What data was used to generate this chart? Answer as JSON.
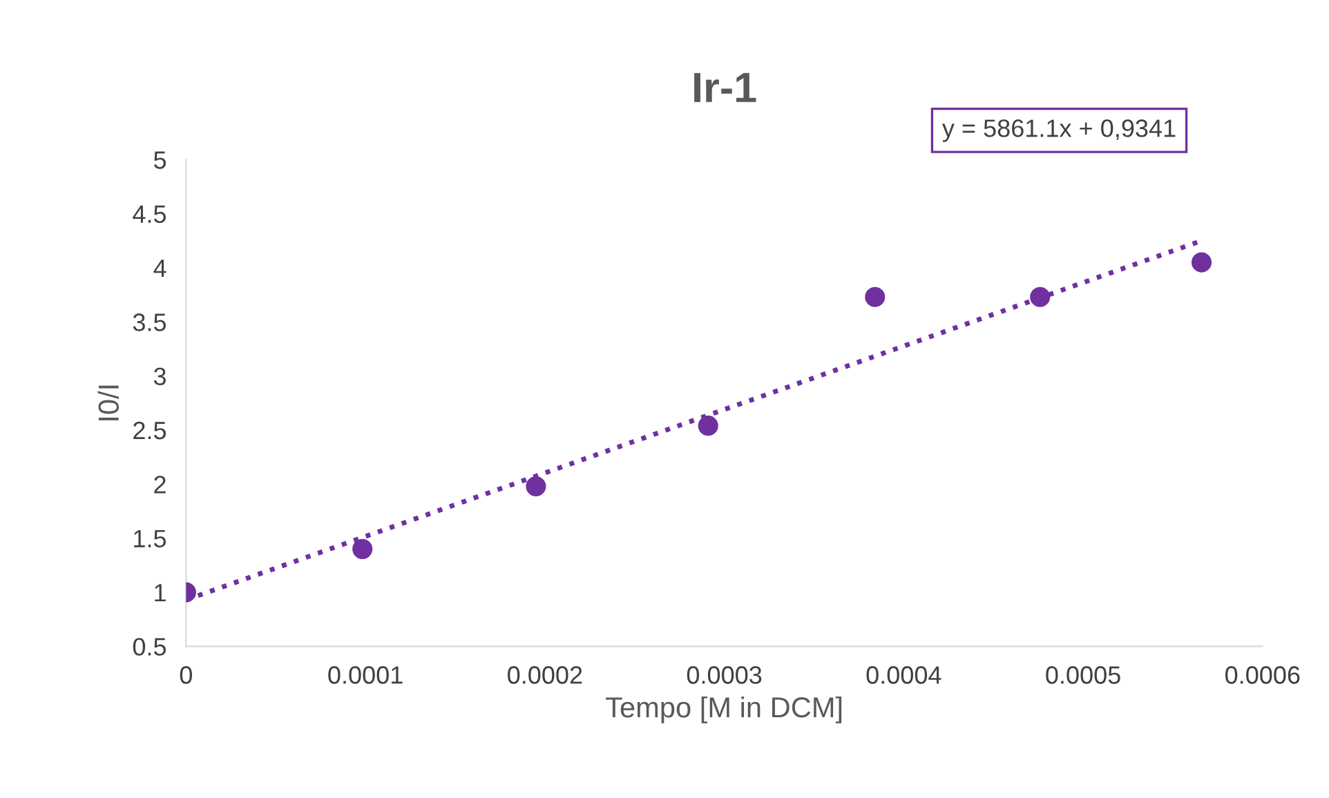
{
  "chart_data": {
    "type": "scatter",
    "title": "Ir-1",
    "xlabel": "Tempo [M in DCM]",
    "ylabel": "I0/I",
    "series": [
      {
        "color": "#7030a0",
        "marker": "circle",
        "x": [
          0,
          9.83e-05,
          0.000195,
          0.000291,
          0.000384,
          0.000476,
          0.000566
        ],
        "values": [
          1.0,
          1.4,
          1.98,
          2.54,
          3.73,
          3.73,
          4.05
        ]
      },
      {
        "type": "line",
        "color": "#7030a0",
        "line_style": "dotted",
        "marker": "none",
        "x": [
          0,
          0.000566
        ],
        "values": [
          0.93,
          4.25
        ]
      }
    ],
    "annotations": [
      "y = 5861.1x + 0,9341"
    ],
    "xlim": [
      0,
      0.0006
    ],
    "xticks": [
      0,
      0.0001,
      0.0002,
      0.0003,
      0.0004,
      0.0005,
      0.0006
    ],
    "ylim": [
      0.5,
      5
    ],
    "yticks": [
      0.5,
      1,
      1.5,
      2,
      2.5,
      3,
      3.5,
      4,
      4.5,
      5
    ],
    "grid": false,
    "legend": false
  }
}
